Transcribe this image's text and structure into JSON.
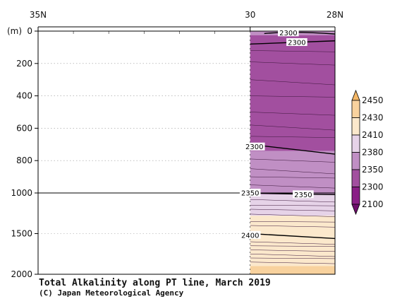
{
  "chart_data": {
    "type": "contour",
    "title": "Total Alkalinity along PT line, March 2019",
    "credit": "(C) Japan Meteorological Agency",
    "y_unit_label": "(m)",
    "x_ticks": [
      {
        "value": 35,
        "label": "35N"
      },
      {
        "value": 30,
        "label": "30"
      },
      {
        "value": 28,
        "label": "28N"
      }
    ],
    "x_range": [
      35,
      28
    ],
    "y_ticks_upper": [
      0,
      200,
      400,
      600,
      800,
      1000
    ],
    "y_ticks_lower": [
      1500,
      2000
    ],
    "y_break": 1000,
    "data_extent_lat": [
      30,
      28
    ],
    "colorbar": {
      "levels": [
        "2450",
        "2430",
        "2410",
        "2380",
        "2350",
        "2300",
        "2100"
      ],
      "colors": [
        "#f5b766",
        "#f8d29e",
        "#fbe8cc",
        "#e6d3e8",
        "#c08fc4",
        "#a24f9f",
        "#8a1f86",
        "#6e0e6c"
      ]
    },
    "bands": [
      {
        "from_depth": 0,
        "to_depth": 25,
        "color": "#c08fc4",
        "range": "2300-2350"
      },
      {
        "from_depth": 25,
        "to_depth": 740,
        "color": "#a24f9f",
        "range": "2100-2300"
      },
      {
        "from_depth": 740,
        "to_depth": 1020,
        "color": "#c08fc4",
        "range": "2300-2350"
      },
      {
        "from_depth": 1020,
        "to_depth": 1280,
        "color": "#e6d3e8",
        "range": "2350-2380"
      },
      {
        "from_depth": 1280,
        "to_depth": 1900,
        "color": "#fbe8cc",
        "range": "2380-2410"
      },
      {
        "from_depth": 1900,
        "to_depth": 2000,
        "color": "#f8d29e",
        "range": "2410-2430"
      }
    ],
    "contour_labels": [
      {
        "text": "2300",
        "lat": 29.1,
        "depth": 10
      },
      {
        "text": "2300",
        "lat": 28.9,
        "depth": 70
      },
      {
        "text": "2300",
        "lat": 29.9,
        "depth": 715
      },
      {
        "text": "2350",
        "lat": 30.0,
        "depth": 1000
      },
      {
        "text": "2350",
        "lat": 28.75,
        "depth": 1020
      },
      {
        "text": "2400",
        "lat": 30.0,
        "depth": 1520
      }
    ]
  }
}
